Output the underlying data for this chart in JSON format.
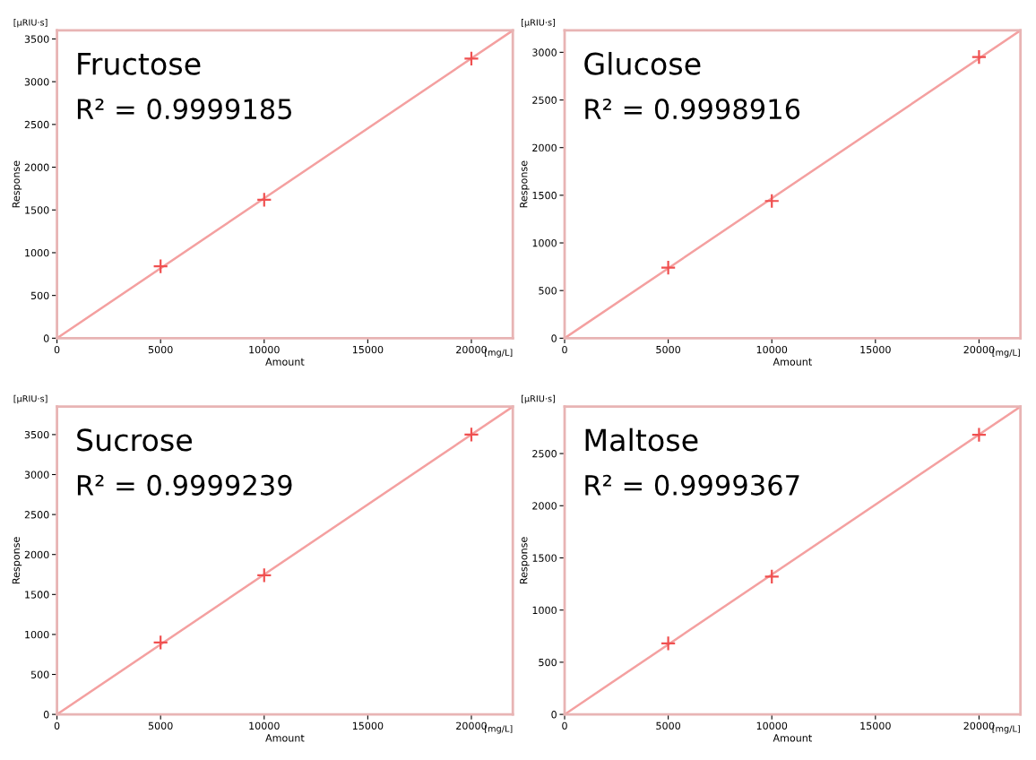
{
  "chart_data": [
    {
      "type": "scatter",
      "title": "Fructose",
      "xlabel": "Amount",
      "ylabel": "Response",
      "annotations": [
        "R² = 0.9999185",
        "[µRIU·s]",
        "[mg/L]"
      ],
      "xlim": [
        0,
        22000
      ],
      "ylim": [
        0,
        3600
      ],
      "xticks": [
        0,
        5000,
        10000,
        15000,
        20000
      ],
      "yticks": [
        0,
        500,
        1000,
        1500,
        2000,
        2500,
        3000,
        3500
      ],
      "grid": false,
      "series": [
        {
          "color": "#f05050",
          "marker": "cross",
          "x": [
            5000,
            10000,
            20000
          ],
          "values": [
            840,
            1620,
            3270
          ]
        },
        {
          "type": "line",
          "marker": "none",
          "color": "#f4a0a0",
          "x": [
            0,
            22000
          ],
          "values": [
            0,
            3600
          ]
        }
      ]
    },
    {
      "type": "scatter",
      "title": "Glucose",
      "xlabel": "Amount",
      "ylabel": "Response",
      "annotations": [
        "R² = 0.9998916",
        "[µRIU·s]",
        "[mg/L]"
      ],
      "xlim": [
        0,
        22000
      ],
      "ylim": [
        0,
        3230
      ],
      "xticks": [
        0,
        5000,
        10000,
        15000,
        20000
      ],
      "yticks": [
        0,
        500,
        1000,
        1500,
        2000,
        2500,
        3000
      ],
      "grid": false,
      "series": [
        {
          "color": "#f05050",
          "marker": "cross",
          "x": [
            5000,
            10000,
            20000
          ],
          "values": [
            740,
            1440,
            2950
          ]
        },
        {
          "type": "line",
          "marker": "none",
          "color": "#f4a0a0",
          "x": [
            0,
            22000
          ],
          "values": [
            0,
            3230
          ]
        }
      ]
    },
    {
      "type": "scatter",
      "title": "Sucrose",
      "xlabel": "Amount",
      "ylabel": "Response",
      "annotations": [
        "R² = 0.9999239",
        "[µRIU·s]",
        "[mg/L]"
      ],
      "xlim": [
        0,
        22000
      ],
      "ylim": [
        0,
        3850
      ],
      "xticks": [
        0,
        5000,
        10000,
        15000,
        20000
      ],
      "yticks": [
        0,
        500,
        1000,
        1500,
        2000,
        2500,
        3000,
        3500
      ],
      "grid": false,
      "series": [
        {
          "color": "#f05050",
          "marker": "cross",
          "x": [
            5000,
            10000,
            20000
          ],
          "values": [
            900,
            1740,
            3500
          ]
        },
        {
          "type": "line",
          "marker": "none",
          "color": "#f4a0a0",
          "x": [
            0,
            22000
          ],
          "values": [
            0,
            3850
          ]
        }
      ]
    },
    {
      "type": "scatter",
      "title": "Maltose",
      "xlabel": "Amount",
      "ylabel": "Response",
      "annotations": [
        "R² = 0.9999367",
        "[µRIU·s]",
        "[mg/L]"
      ],
      "xlim": [
        0,
        22000
      ],
      "ylim": [
        0,
        2950
      ],
      "xticks": [
        0,
        5000,
        10000,
        15000,
        20000
      ],
      "yticks": [
        0,
        500,
        1000,
        1500,
        2000,
        2500
      ],
      "grid": false,
      "series": [
        {
          "color": "#f05050",
          "marker": "cross",
          "x": [
            5000,
            10000,
            20000
          ],
          "values": [
            680,
            1320,
            2680
          ]
        },
        {
          "type": "line",
          "marker": "none",
          "color": "#f4a0a0",
          "x": [
            0,
            22000
          ],
          "values": [
            0,
            2950
          ]
        }
      ]
    }
  ]
}
